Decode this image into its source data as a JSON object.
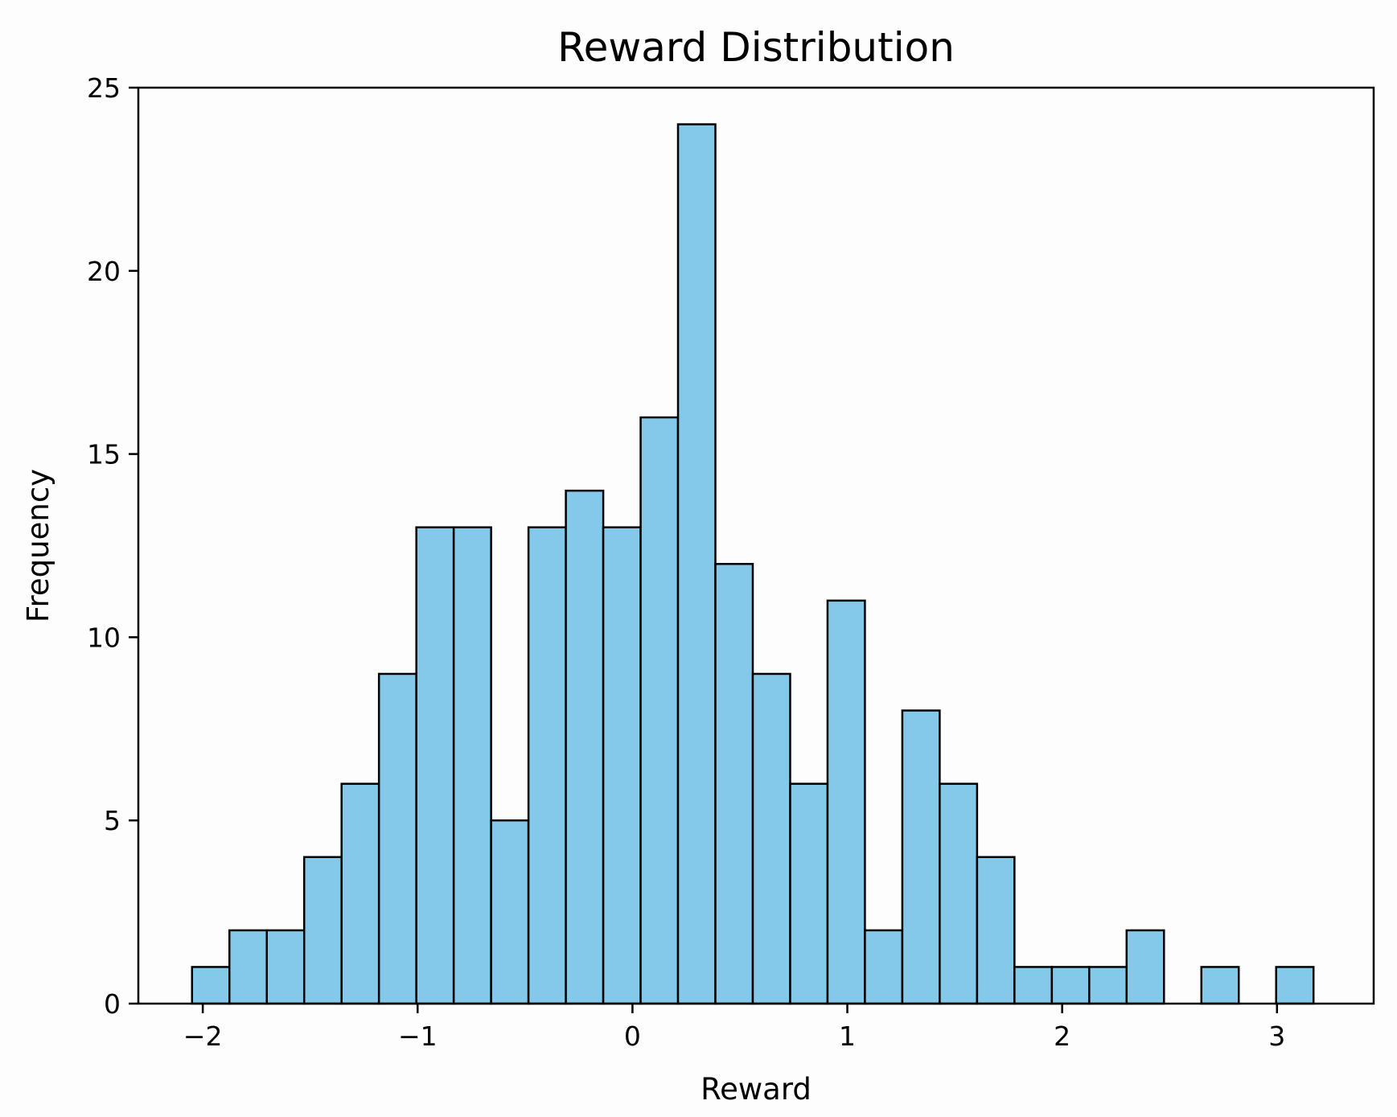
{
  "chart_data": {
    "type": "bar",
    "title": "Reward Distribution",
    "xlabel": "Reward",
    "ylabel": "Frequency",
    "xlim": [
      -2.3,
      3.45
    ],
    "ylim": [
      0,
      25
    ],
    "xticks": [
      -2,
      -1,
      0,
      1,
      2,
      3
    ],
    "xtick_labels": [
      "−2",
      "−1",
      "0",
      "1",
      "2",
      "3"
    ],
    "yticks": [
      0,
      5,
      10,
      15,
      20,
      25
    ],
    "ytick_labels": [
      "0",
      "5",
      "10",
      "15",
      "20",
      "25"
    ],
    "bin_edges": [
      -2.05,
      -1.876,
      -1.702,
      -1.528,
      -1.354,
      -1.18,
      -1.006,
      -0.832,
      -0.658,
      -0.484,
      -0.31,
      -0.136,
      0.038,
      0.212,
      0.386,
      0.56,
      0.734,
      0.908,
      1.082,
      1.256,
      1.43,
      1.604,
      1.778,
      1.952,
      2.126,
      2.3,
      2.474,
      2.648,
      2.822,
      2.996,
      3.17
    ],
    "values": [
      1,
      2,
      2,
      4,
      6,
      9,
      13,
      13,
      5,
      13,
      14,
      13,
      16,
      24,
      12,
      9,
      6,
      11,
      2,
      8,
      6,
      4,
      1,
      1,
      1,
      2,
      0,
      1,
      0,
      1
    ],
    "bar_color": "#84c9e9",
    "edge_color": "#000000",
    "grid": false,
    "legend": "none"
  }
}
